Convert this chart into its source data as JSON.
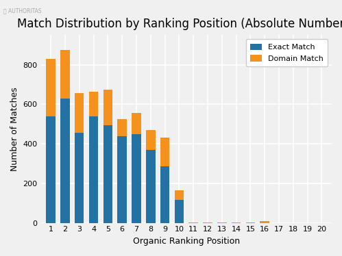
{
  "title": "Match Distribution by Ranking Position (Absolute Numbers)",
  "xlabel": "Organic Ranking Position",
  "ylabel": "Number of Matches",
  "positions": [
    1,
    2,
    3,
    4,
    5,
    6,
    7,
    8,
    9,
    10,
    11,
    12,
    13,
    14,
    15,
    16,
    17,
    18,
    19,
    20
  ],
  "exact_match": [
    540,
    630,
    455,
    540,
    495,
    440,
    450,
    370,
    285,
    115,
    0,
    0,
    0,
    0,
    0,
    0,
    0,
    0,
    0,
    0
  ],
  "domain_match": [
    290,
    245,
    200,
    125,
    180,
    85,
    105,
    100,
    145,
    50,
    3,
    3,
    3,
    3,
    3,
    10,
    0,
    0,
    0,
    0
  ],
  "exact_color": "#2472a4",
  "domain_color": "#f5921e",
  "background_color": "#f0f0f0",
  "grid_color": "#ffffff",
  "ylim": [
    0,
    950
  ],
  "yticks": [
    0,
    200,
    400,
    600,
    800
  ],
  "legend_exact": "Exact Match",
  "legend_domain": "Domain Match",
  "title_fontsize": 12,
  "axis_label_fontsize": 9,
  "tick_fontsize": 8
}
